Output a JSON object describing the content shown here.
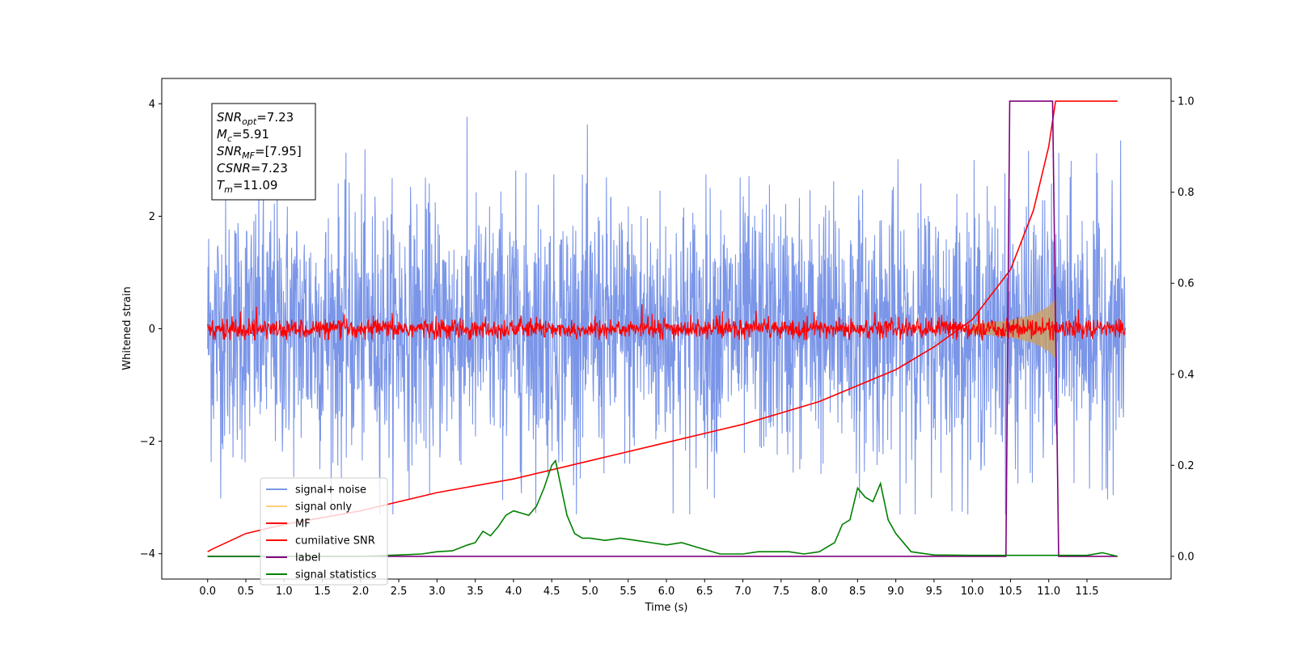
{
  "chart_data": {
    "type": "line",
    "xlabel": "Time (s)",
    "ylabel": "Whitened strain",
    "xlim": [
      -0.6,
      12.6
    ],
    "ylim": [
      -4.45,
      4.45
    ],
    "y2lim": [
      -0.05,
      1.05
    ],
    "x_ticks": [
      0.0,
      0.5,
      1.0,
      1.5,
      2.0,
      2.5,
      3.0,
      3.5,
      4.0,
      4.5,
      5.0,
      5.5,
      6.0,
      6.5,
      7.0,
      7.5,
      8.0,
      8.5,
      9.0,
      9.5,
      10.0,
      10.5,
      11.0,
      11.5
    ],
    "x_tick_labels": [
      "0.0",
      "0.5",
      "1.0",
      "1.5",
      "2.0",
      "2.5",
      "3.0",
      "3.5",
      "4.0",
      "4.5",
      "5.0",
      "5.5",
      "6.0",
      "6.5",
      "7.0",
      "7.5",
      "8.0",
      "8.5",
      "9.0",
      "9.5",
      "10.0",
      "10.5",
      "11.0",
      "11.5"
    ],
    "y_ticks": [
      -4,
      -2,
      0,
      2,
      4
    ],
    "y_tick_labels": [
      "−4",
      "−2",
      "0",
      "2",
      "4"
    ],
    "y2_ticks": [
      0.0,
      0.2,
      0.4,
      0.6,
      0.8,
      1.0
    ],
    "y2_tick_labels": [
      "0.0",
      "0.2",
      "0.4",
      "0.6",
      "0.8",
      "1.0"
    ],
    "annotation": [
      {
        "base": "SNR",
        "sub": "opt",
        "value": "=7.23"
      },
      {
        "base": "M",
        "sub": "c",
        "value": "=5.91"
      },
      {
        "base": "SNR",
        "sub": "MF",
        "value": "=[7.95]"
      },
      {
        "base": "CSNR",
        "sub": "",
        "value": "=7.23"
      },
      {
        "base": "T",
        "sub": "m",
        "value": "=11.09"
      }
    ],
    "legend": {
      "placement": "lower-left",
      "entries": [
        {
          "label": "signal+ noise",
          "color": "#7b96e8"
        },
        {
          "label": "signal only",
          "color": "#ffd07a"
        },
        {
          "label": "MF",
          "color": "#ff0000"
        },
        {
          "label": "cumilative SNR",
          "color": "#ff0000"
        },
        {
          "label": "label",
          "color": "#800080"
        },
        {
          "label": "signal statistics",
          "color": "#008000"
        }
      ]
    },
    "series": [
      {
        "name": "signal+ noise",
        "axis": "left",
        "color": "#7b96e8",
        "x_range": [
          0.0,
          12.0
        ],
        "amplitude_range": [
          -3.3,
          4.0
        ]
      },
      {
        "name": "signal only",
        "axis": "left",
        "color": "#ffd07a",
        "x": [
          10.0,
          10.5,
          10.8,
          11.0,
          11.1
        ],
        "envelope": [
          0.08,
          0.15,
          0.25,
          0.4,
          0.55
        ]
      },
      {
        "name": "MF",
        "axis": "left",
        "color": "#ff0000",
        "x_range": [
          0.0,
          12.0
        ],
        "amplitude_range": [
          -0.2,
          0.45
        ]
      },
      {
        "name": "cumilative SNR",
        "axis": "right",
        "color": "#ff0000",
        "x": [
          0.0,
          0.05,
          0.5,
          1.0,
          2.0,
          3.0,
          4.0,
          5.0,
          6.0,
          7.0,
          8.0,
          9.0,
          9.5,
          10.0,
          10.5,
          10.8,
          11.0,
          11.09,
          11.9
        ],
        "values": [
          0.01,
          0.015,
          0.05,
          0.07,
          0.1,
          0.14,
          0.17,
          0.21,
          0.25,
          0.29,
          0.34,
          0.41,
          0.46,
          0.52,
          0.63,
          0.76,
          0.9,
          1.0,
          1.0
        ]
      },
      {
        "name": "label",
        "axis": "right",
        "color": "#800080",
        "x": [
          0.0,
          10.44,
          10.49,
          11.05,
          11.13,
          11.9
        ],
        "values": [
          0.0,
          0.0,
          1.0,
          1.0,
          0.0,
          0.0
        ]
      },
      {
        "name": "signal statistics",
        "axis": "right",
        "color": "#008000",
        "x": [
          0.0,
          0.5,
          1.0,
          1.5,
          2.0,
          2.5,
          2.8,
          3.0,
          3.2,
          3.4,
          3.5,
          3.6,
          3.7,
          3.8,
          3.9,
          4.0,
          4.1,
          4.2,
          4.3,
          4.4,
          4.5,
          4.55,
          4.6,
          4.7,
          4.8,
          4.9,
          5.0,
          5.2,
          5.4,
          5.6,
          5.8,
          6.0,
          6.2,
          6.4,
          6.5,
          6.7,
          7.0,
          7.2,
          7.4,
          7.6,
          7.8,
          8.0,
          8.1,
          8.2,
          8.3,
          8.4,
          8.5,
          8.6,
          8.7,
          8.8,
          8.9,
          9.0,
          9.2,
          9.5,
          10.0,
          10.5,
          11.0,
          11.5,
          11.7,
          11.9
        ],
        "values": [
          0.0,
          0.0,
          0.0,
          0.0,
          0.0,
          0.003,
          0.005,
          0.01,
          0.012,
          0.025,
          0.03,
          0.055,
          0.045,
          0.065,
          0.09,
          0.1,
          0.095,
          0.09,
          0.11,
          0.15,
          0.2,
          0.21,
          0.17,
          0.09,
          0.05,
          0.04,
          0.04,
          0.035,
          0.04,
          0.035,
          0.03,
          0.025,
          0.03,
          0.02,
          0.015,
          0.005,
          0.005,
          0.01,
          0.01,
          0.01,
          0.005,
          0.01,
          0.02,
          0.03,
          0.07,
          0.08,
          0.15,
          0.13,
          0.12,
          0.16,
          0.08,
          0.05,
          0.01,
          0.003,
          0.002,
          0.002,
          0.002,
          0.002,
          0.008,
          0.0
        ]
      }
    ]
  }
}
